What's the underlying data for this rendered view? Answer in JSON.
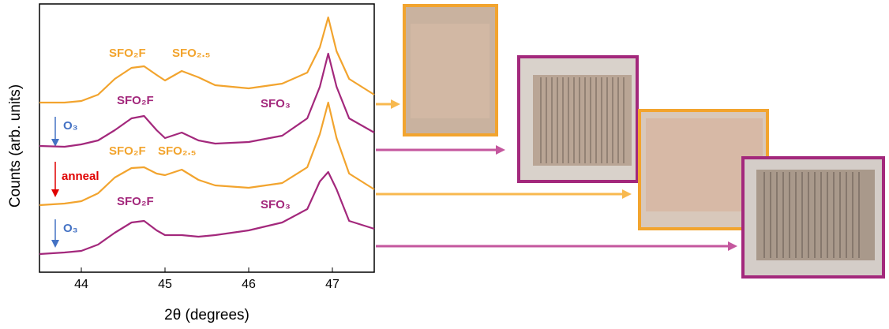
{
  "chart_data": {
    "type": "line",
    "x_label": "2θ (degrees)",
    "y_label": "Counts (arb. units)",
    "x": [
      43.5,
      43.8,
      44.0,
      44.2,
      44.4,
      44.6,
      44.75,
      44.9,
      45.0,
      45.2,
      45.4,
      45.6,
      46.0,
      46.4,
      46.7,
      46.85,
      46.95,
      47.05,
      47.2,
      47.5
    ],
    "series": [
      {
        "color": "#f2a42e",
        "values": [
          215,
          215,
          217,
          225,
          245,
          259,
          261,
          250,
          243,
          255,
          247,
          237,
          233,
          239,
          253,
          285,
          323,
          280,
          245,
          225
        ]
      },
      {
        "color": "#a3287c",
        "values": [
          160,
          159,
          162,
          167,
          180,
          195,
          198,
          180,
          170,
          177,
          167,
          163,
          165,
          173,
          195,
          235,
          277,
          235,
          195,
          177
        ]
      },
      {
        "color": "#f2a42e",
        "values": [
          85,
          87,
          90,
          100,
          120,
          132,
          133,
          125,
          123,
          130,
          117,
          110,
          107,
          113,
          133,
          175,
          215,
          170,
          125,
          105
        ]
      },
      {
        "color": "#a3287c",
        "values": [
          23,
          25,
          27,
          35,
          50,
          63,
          65,
          53,
          47,
          47,
          45,
          47,
          53,
          63,
          80,
          115,
          127,
          105,
          65,
          55
        ]
      }
    ],
    "xlim": [
      43.5,
      47.5
    ],
    "xticks": [
      44,
      45,
      46,
      47
    ],
    "ylim": [
      0,
      340
    ],
    "annotations": [
      "SFO₂F",
      "SFO₂.₅",
      "SFO₂F",
      "SFO₃",
      "O₃",
      "SFO₂F",
      "SFO₂.₅",
      "anneal",
      "SFO₂F",
      "SFO₃",
      "O₃"
    ]
  }
}
